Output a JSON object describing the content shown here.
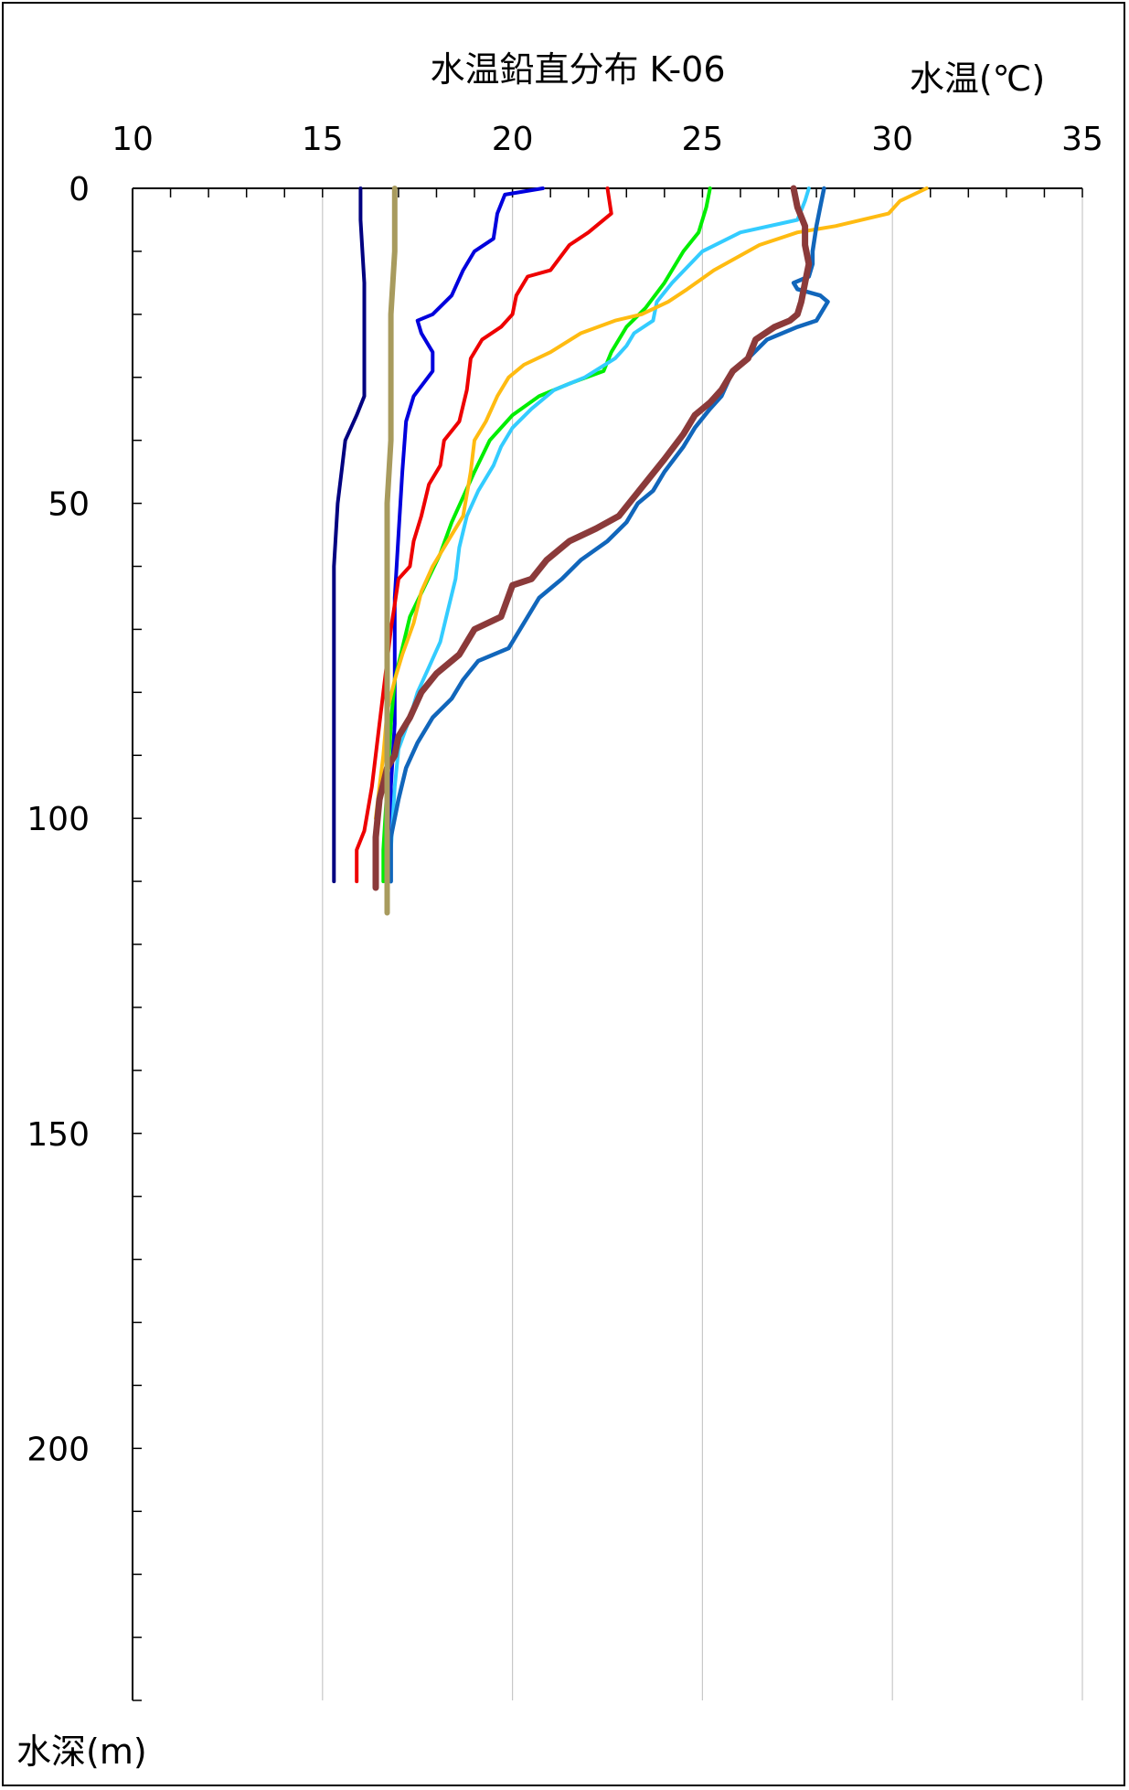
{
  "chart_data": {
    "type": "line",
    "title": "水温鉛直分布 K-06",
    "xlabel": "水温(℃)",
    "ylabel": "水深(m)",
    "xlim": [
      10,
      35
    ],
    "ylim": [
      0,
      240
    ],
    "x_ticks": [
      "10",
      "15",
      "20",
      "25",
      "30",
      "35"
    ],
    "y_ticks": [
      "0",
      "50",
      "100",
      "150",
      "200"
    ],
    "y_minor_step": 10,
    "grid": "vertical",
    "x_axis_position": "top",
    "y_axis_inverted": true,
    "series": [
      {
        "color": "#000080",
        "width": 4,
        "points": [
          [
            16.0,
            0
          ],
          [
            16.0,
            5
          ],
          [
            16.1,
            15
          ],
          [
            16.1,
            25
          ],
          [
            16.1,
            33
          ],
          [
            15.9,
            36
          ],
          [
            15.6,
            40
          ],
          [
            15.5,
            45
          ],
          [
            15.4,
            50
          ],
          [
            15.3,
            60
          ],
          [
            15.3,
            80
          ],
          [
            15.3,
            100
          ],
          [
            15.3,
            110
          ]
        ]
      },
      {
        "color": "#0000DD",
        "width": 4,
        "points": [
          [
            20.8,
            0
          ],
          [
            19.8,
            1
          ],
          [
            19.6,
            4
          ],
          [
            19.5,
            8
          ],
          [
            19.0,
            10
          ],
          [
            18.7,
            13
          ],
          [
            18.4,
            17
          ],
          [
            17.9,
            20
          ],
          [
            17.5,
            21
          ],
          [
            17.6,
            23
          ],
          [
            17.9,
            26
          ],
          [
            17.9,
            29
          ],
          [
            17.4,
            33
          ],
          [
            17.2,
            37
          ],
          [
            17.1,
            45
          ],
          [
            17.0,
            55
          ],
          [
            16.9,
            65
          ],
          [
            16.9,
            75
          ],
          [
            16.9,
            85
          ],
          [
            16.8,
            95
          ],
          [
            16.8,
            105
          ],
          [
            16.8,
            110
          ]
        ]
      },
      {
        "color": "#EE0000",
        "width": 4,
        "points": [
          [
            22.5,
            0
          ],
          [
            22.6,
            4
          ],
          [
            22.0,
            7
          ],
          [
            21.5,
            9
          ],
          [
            21.0,
            13
          ],
          [
            20.4,
            14
          ],
          [
            20.1,
            17
          ],
          [
            20.0,
            20
          ],
          [
            19.7,
            22
          ],
          [
            19.2,
            24
          ],
          [
            18.9,
            27
          ],
          [
            18.8,
            32
          ],
          [
            18.6,
            37
          ],
          [
            18.2,
            40
          ],
          [
            18.1,
            44
          ],
          [
            17.8,
            47
          ],
          [
            17.6,
            52
          ],
          [
            17.4,
            56
          ],
          [
            17.3,
            60
          ],
          [
            17.0,
            62
          ],
          [
            16.9,
            66
          ],
          [
            16.8,
            70
          ],
          [
            16.7,
            75
          ],
          [
            16.6,
            80
          ],
          [
            16.5,
            85
          ],
          [
            16.3,
            95
          ],
          [
            16.1,
            102
          ],
          [
            15.9,
            105
          ],
          [
            15.9,
            110
          ]
        ]
      },
      {
        "color": "#00EE00",
        "width": 4,
        "points": [
          [
            25.2,
            0
          ],
          [
            25.1,
            3
          ],
          [
            24.9,
            7
          ],
          [
            24.5,
            10
          ],
          [
            24.0,
            15
          ],
          [
            23.5,
            19
          ],
          [
            23.0,
            22
          ],
          [
            22.6,
            26
          ],
          [
            22.4,
            29
          ],
          [
            21.5,
            31
          ],
          [
            20.7,
            33
          ],
          [
            20.0,
            36
          ],
          [
            19.4,
            40
          ],
          [
            19.0,
            45
          ],
          [
            18.7,
            49
          ],
          [
            18.4,
            53
          ],
          [
            18.1,
            58
          ],
          [
            17.7,
            63
          ],
          [
            17.3,
            68
          ],
          [
            17.1,
            73
          ],
          [
            16.9,
            78
          ],
          [
            16.8,
            85
          ],
          [
            16.7,
            95
          ],
          [
            16.6,
            105
          ],
          [
            16.6,
            110
          ]
        ]
      },
      {
        "color": "#33CCFF",
        "width": 4,
        "points": [
          [
            27.8,
            0
          ],
          [
            27.7,
            2
          ],
          [
            27.5,
            5
          ],
          [
            26.0,
            7
          ],
          [
            25.0,
            10
          ],
          [
            24.2,
            15
          ],
          [
            23.8,
            18
          ],
          [
            23.7,
            21
          ],
          [
            23.2,
            23
          ],
          [
            23.0,
            25
          ],
          [
            22.7,
            27
          ],
          [
            21.9,
            30
          ],
          [
            21.1,
            32
          ],
          [
            20.5,
            35
          ],
          [
            20.0,
            38
          ],
          [
            19.7,
            41
          ],
          [
            19.5,
            44
          ],
          [
            19.1,
            48
          ],
          [
            18.8,
            52
          ],
          [
            18.6,
            57
          ],
          [
            18.5,
            62
          ],
          [
            18.3,
            67
          ],
          [
            18.1,
            72
          ],
          [
            17.8,
            76
          ],
          [
            17.5,
            80
          ],
          [
            17.3,
            84
          ],
          [
            17.0,
            89
          ],
          [
            16.9,
            95
          ],
          [
            16.8,
            105
          ],
          [
            16.8,
            110
          ]
        ]
      },
      {
        "color": "#FFBB11",
        "width": 4,
        "points": [
          [
            30.9,
            0
          ],
          [
            30.2,
            2
          ],
          [
            29.9,
            4
          ],
          [
            28.5,
            6
          ],
          [
            27.5,
            7
          ],
          [
            26.5,
            9
          ],
          [
            25.3,
            13
          ],
          [
            24.6,
            16
          ],
          [
            24.1,
            18
          ],
          [
            23.4,
            20
          ],
          [
            22.7,
            21
          ],
          [
            21.8,
            23
          ],
          [
            21.0,
            26
          ],
          [
            20.3,
            28
          ],
          [
            19.9,
            30
          ],
          [
            19.6,
            33
          ],
          [
            19.3,
            37
          ],
          [
            19.0,
            40
          ],
          [
            18.9,
            45
          ],
          [
            18.7,
            52
          ],
          [
            18.3,
            56
          ],
          [
            17.9,
            60
          ],
          [
            17.6,
            64
          ],
          [
            17.4,
            69
          ],
          [
            17.1,
            74
          ],
          [
            16.9,
            78
          ],
          [
            16.7,
            83
          ],
          [
            16.6,
            90
          ],
          [
            16.5,
            95
          ],
          [
            16.4,
            100
          ]
        ]
      },
      {
        "color": "#1166BB",
        "width": 4.5,
        "points": [
          [
            28.2,
            0
          ],
          [
            28.1,
            3
          ],
          [
            28.0,
            6
          ],
          [
            27.9,
            10
          ],
          [
            27.9,
            12
          ],
          [
            27.8,
            14
          ],
          [
            27.4,
            15
          ],
          [
            27.5,
            16
          ],
          [
            28.1,
            17
          ],
          [
            28.3,
            18
          ],
          [
            28.0,
            21
          ],
          [
            27.5,
            22
          ],
          [
            26.7,
            24
          ],
          [
            26.2,
            27
          ],
          [
            25.8,
            29
          ],
          [
            25.5,
            33
          ],
          [
            25.2,
            35
          ],
          [
            24.8,
            38
          ],
          [
            24.5,
            41
          ],
          [
            24.0,
            45
          ],
          [
            23.7,
            48
          ],
          [
            23.3,
            50
          ],
          [
            23.0,
            53
          ],
          [
            22.5,
            56
          ],
          [
            21.8,
            59
          ],
          [
            21.3,
            62
          ],
          [
            20.7,
            65
          ],
          [
            20.3,
            69
          ],
          [
            19.9,
            73
          ],
          [
            19.1,
            75
          ],
          [
            18.7,
            78
          ],
          [
            18.4,
            81
          ],
          [
            17.9,
            84
          ],
          [
            17.5,
            88
          ],
          [
            17.2,
            92
          ],
          [
            17.0,
            97
          ],
          [
            16.8,
            103
          ],
          [
            16.8,
            110
          ]
        ]
      },
      {
        "color": "#8B3A3A",
        "width": 7,
        "points": [
          [
            27.4,
            0
          ],
          [
            27.5,
            3
          ],
          [
            27.7,
            6
          ],
          [
            27.7,
            9
          ],
          [
            27.8,
            12
          ],
          [
            27.7,
            15
          ],
          [
            27.6,
            18
          ],
          [
            27.5,
            20
          ],
          [
            27.3,
            21
          ],
          [
            26.9,
            22
          ],
          [
            26.4,
            24
          ],
          [
            26.2,
            27
          ],
          [
            25.8,
            29
          ],
          [
            25.5,
            32
          ],
          [
            25.2,
            34
          ],
          [
            24.8,
            36
          ],
          [
            24.5,
            39
          ],
          [
            24.0,
            43
          ],
          [
            23.6,
            46
          ],
          [
            23.2,
            49
          ],
          [
            22.8,
            52
          ],
          [
            22.2,
            54
          ],
          [
            21.5,
            56
          ],
          [
            20.9,
            59
          ],
          [
            20.5,
            62
          ],
          [
            20.0,
            63
          ],
          [
            19.7,
            68
          ],
          [
            19.0,
            70
          ],
          [
            18.6,
            74
          ],
          [
            18.0,
            77
          ],
          [
            17.6,
            80
          ],
          [
            17.3,
            84
          ],
          [
            17.0,
            87
          ],
          [
            16.9,
            90
          ],
          [
            16.7,
            92
          ],
          [
            16.5,
            97
          ],
          [
            16.4,
            103
          ],
          [
            16.4,
            111
          ]
        ]
      },
      {
        "color": "#A89B5E",
        "width": 6,
        "points": [
          [
            16.9,
            0
          ],
          [
            16.9,
            10
          ],
          [
            16.8,
            20
          ],
          [
            16.8,
            30
          ],
          [
            16.8,
            40
          ],
          [
            16.7,
            50
          ],
          [
            16.7,
            60
          ],
          [
            16.7,
            70
          ],
          [
            16.7,
            80
          ],
          [
            16.7,
            90
          ],
          [
            16.7,
            100
          ],
          [
            16.7,
            110
          ],
          [
            16.7,
            115
          ]
        ]
      }
    ]
  }
}
